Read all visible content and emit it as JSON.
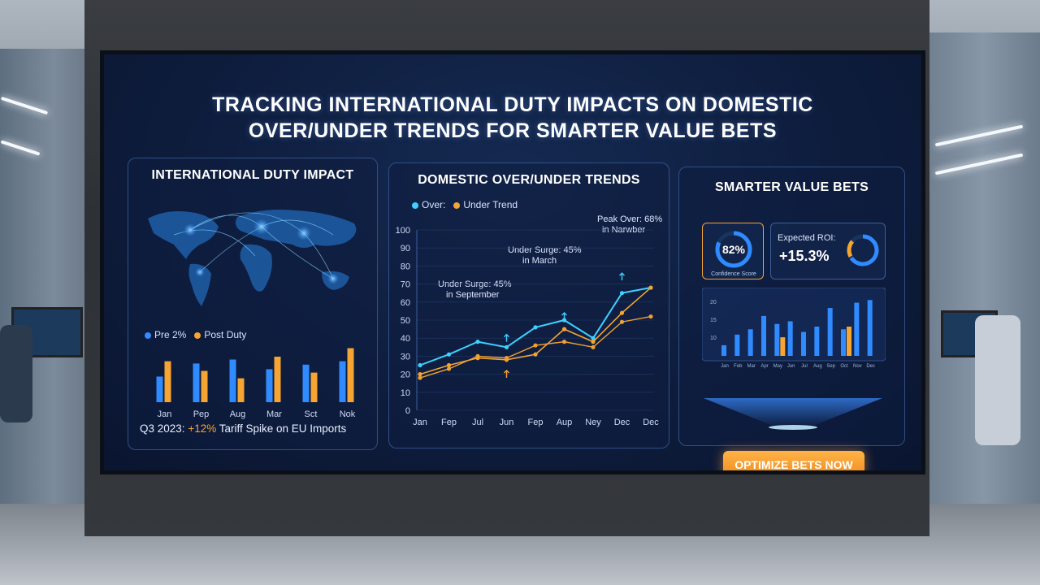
{
  "headline": {
    "line1": "TRACKING INTERNATIONAL DUTY IMPACTS ON DOMESTIC",
    "line2": "OVER/UNDER TRENDS FOR SMARTER VALUE BETS"
  },
  "panel_duty": {
    "title": "INTERNATIONAL DUTY IMPACT",
    "legend": [
      "Pre 2%",
      "Post Duty"
    ],
    "footnote_prefix": "Q3 2023:",
    "footnote_highlight": "+12%",
    "footnote_suffix": "Tariff Spike on EU Imports"
  },
  "panel_trends": {
    "title": "DOMESTIC OVER/UNDER TRENDS",
    "legend": [
      "Over:",
      "Under Trend"
    ],
    "annotations": [
      "Peak Over: 68%",
      "in Narwber",
      "Under Surge: 45%",
      "in March",
      "Under Surge: 45%",
      "in September"
    ]
  },
  "panel_bets": {
    "title": "SMARTER VALUE BETS",
    "confidence_value": "82%",
    "confidence_label": "Confidence Score",
    "roi_label": "Expected ROI:",
    "roi_value": "+15.3%",
    "cta_label": "OPTIMIZE BETS NOW"
  },
  "colors": {
    "blue": "#2f8bff",
    "cyan": "#3fd0ff",
    "orange": "#f6a432",
    "panel_border": "#2f4f86"
  },
  "chart_data": [
    {
      "type": "bar",
      "title": "INTERNATIONAL DUTY IMPACT",
      "categories": [
        "Jan",
        "Pep",
        "Aug",
        "Mar",
        "Sct",
        "Nok"
      ],
      "series": [
        {
          "name": "Pre 2%",
          "values": [
            45,
            68,
            75,
            58,
            66,
            72
          ]
        },
        {
          "name": "Post Duty",
          "values": [
            72,
            55,
            42,
            80,
            52,
            95
          ]
        }
      ],
      "ylim": [
        0,
        100
      ],
      "legend_position": "top-left"
    },
    {
      "type": "line",
      "title": "DOMESTIC OVER/UNDER TRENDS",
      "categories": [
        "Jan",
        "Fep",
        "Jul",
        "Jun",
        "Fep",
        "Aup",
        "Ney",
        "Dec",
        "Dec"
      ],
      "series": [
        {
          "name": "Over:",
          "values": [
            25,
            31,
            38,
            35,
            46,
            50,
            40,
            65,
            68
          ]
        },
        {
          "name": "Under Trend",
          "values": [
            20,
            25,
            29,
            28,
            31,
            45,
            38,
            54,
            68
          ]
        },
        {
          "values": [
            18,
            23,
            30,
            29,
            36,
            38,
            35,
            49,
            52
          ]
        }
      ],
      "yticks": [
        0,
        10,
        20,
        30,
        40,
        50,
        60,
        70,
        80,
        90,
        100
      ],
      "ylim": [
        0,
        100
      ],
      "legend_position": "top-left"
    },
    {
      "type": "bar",
      "title": "SMARTER VALUE BETS",
      "yticks": [
        "20",
        "15",
        "10"
      ],
      "categories": [
        "Jan",
        "Feb",
        "Mar",
        "Apr",
        "May",
        "Jun",
        "Jul",
        "Aug",
        "Sep",
        "Oct",
        "Nov",
        "Dec"
      ],
      "series": [
        {
          "values": [
            4,
            8,
            10,
            15,
            12,
            13,
            9,
            11,
            18,
            10,
            20,
            21
          ]
        },
        {
          "values": [
            0,
            0,
            0,
            0,
            7,
            0,
            0,
            0,
            0,
            11,
            0,
            0
          ]
        }
      ]
    }
  ]
}
